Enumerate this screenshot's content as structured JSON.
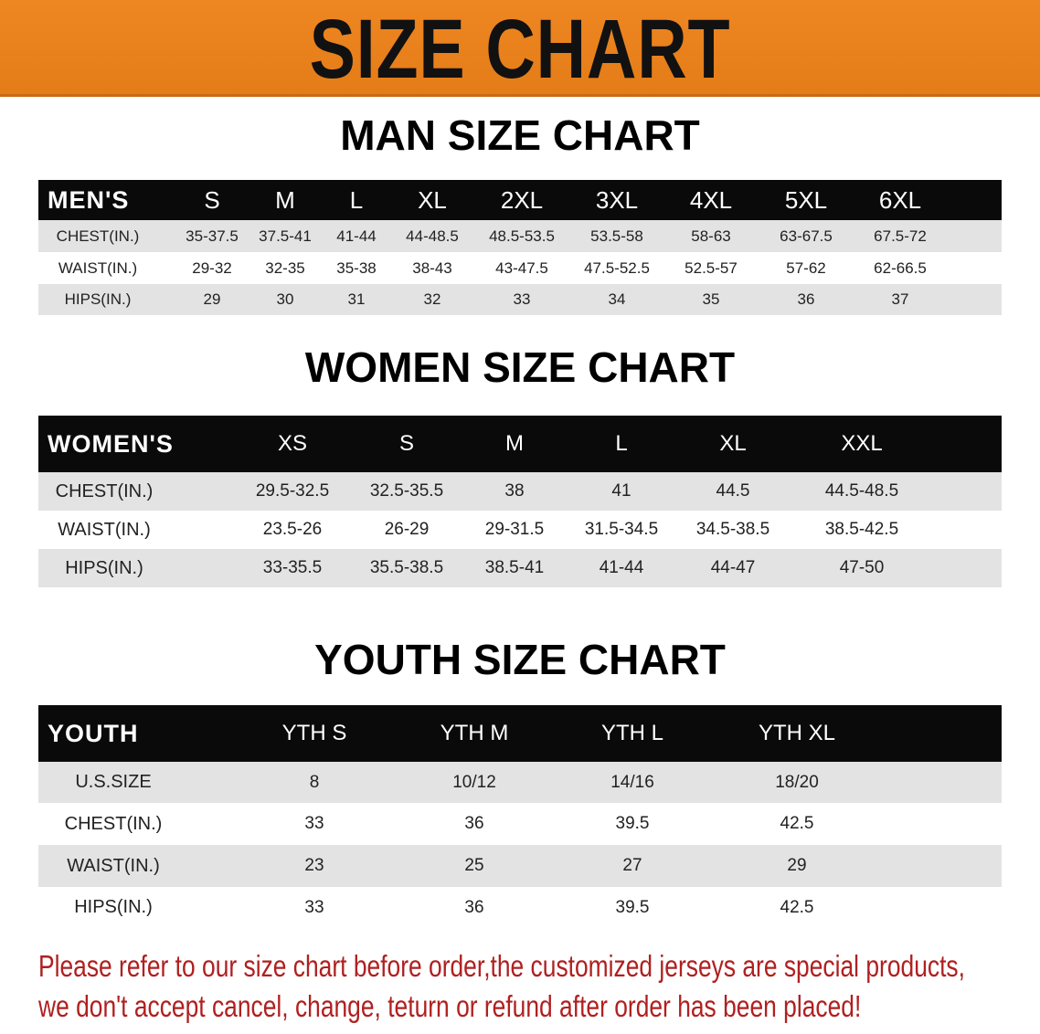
{
  "banner_title": "SIZE CHART",
  "colors": {
    "banner": "#e98120",
    "header_bg": "#0a0a0a",
    "row_stripe": "#e3e3e3",
    "note": "#b02020"
  },
  "men": {
    "title": "MAN SIZE CHART",
    "header": "MEN'S",
    "sizes": [
      "S",
      "M",
      "L",
      "XL",
      "2XL",
      "3XL",
      "4XL",
      "5XL",
      "6XL"
    ],
    "rows": [
      {
        "label": "CHEST(IN.)",
        "values": [
          "35-37.5",
          "37.5-41",
          "41-44",
          "44-48.5",
          "48.5-53.5",
          "53.5-58",
          "58-63",
          "63-67.5",
          "67.5-72"
        ]
      },
      {
        "label": "WAIST(IN.)",
        "values": [
          "29-32",
          "32-35",
          "35-38",
          "38-43",
          "43-47.5",
          "47.5-52.5",
          "52.5-57",
          "57-62",
          "62-66.5"
        ]
      },
      {
        "label": "HIPS(IN.)",
        "values": [
          "29",
          "30",
          "31",
          "32",
          "33",
          "34",
          "35",
          "36",
          "37"
        ]
      }
    ]
  },
  "women": {
    "title": "WOMEN SIZE CHART",
    "header": "WOMEN'S",
    "sizes": [
      "XS",
      "S",
      "M",
      "L",
      "XL",
      "XXL"
    ],
    "rows": [
      {
        "label": "CHEST(IN.)",
        "values": [
          "29.5-32.5",
          "32.5-35.5",
          "38",
          "41",
          "44.5",
          "44.5-48.5"
        ]
      },
      {
        "label": "WAIST(IN.)",
        "values": [
          "23.5-26",
          "26-29",
          "29-31.5",
          "31.5-34.5",
          "34.5-38.5",
          "38.5-42.5"
        ]
      },
      {
        "label": "HIPS(IN.)",
        "values": [
          "33-35.5",
          "35.5-38.5",
          "38.5-41",
          "41-44",
          "44-47",
          "47-50"
        ]
      }
    ]
  },
  "youth": {
    "title": "YOUTH SIZE CHART",
    "header": "YOUTH",
    "sizes": [
      "YTH S",
      "YTH M",
      "YTH L",
      "YTH XL"
    ],
    "rows": [
      {
        "label": "U.S.SIZE",
        "values": [
          "8",
          "10/12",
          "14/16",
          "18/20"
        ]
      },
      {
        "label": "CHEST(IN.)",
        "values": [
          "33",
          "36",
          "39.5",
          "42.5"
        ]
      },
      {
        "label": "WAIST(IN.)",
        "values": [
          "23",
          "25",
          "27",
          "29"
        ]
      },
      {
        "label": "HIPS(IN.)",
        "values": [
          "33",
          "36",
          "39.5",
          "42.5"
        ]
      }
    ]
  },
  "note": {
    "line1": "Please refer to our size chart before order,the customized jerseys are special products,",
    "line2": "we don't accept cancel, change, teturn or refund after order has been placed!"
  }
}
